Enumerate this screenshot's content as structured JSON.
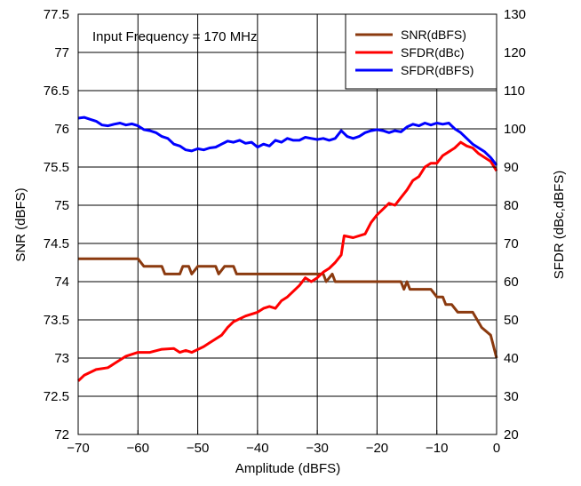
{
  "chart_data": {
    "type": "line",
    "annotation": "Input Frequency = 170 MHz",
    "xlabel": "Amplitude (dBFS)",
    "ylabel_left": "SNR (dBFS)",
    "ylabel_right": "SFDR (dBc,dBFS)",
    "xlim": [
      -70,
      0
    ],
    "ylim_left": [
      72,
      77.5
    ],
    "ylim_right": [
      20,
      130
    ],
    "grid": true,
    "legend_position": "top-right",
    "x_ticks": [
      {
        "v": -70,
        "label": "−70"
      },
      {
        "v": -60,
        "label": "−60"
      },
      {
        "v": -50,
        "label": "−50"
      },
      {
        "v": -40,
        "label": "−40"
      },
      {
        "v": -30,
        "label": "−30"
      },
      {
        "v": -20,
        "label": "−20"
      },
      {
        "v": -10,
        "label": "−10"
      },
      {
        "v": 0,
        "label": "0"
      }
    ],
    "y_left_ticks": [
      "72",
      "72.5",
      "73",
      "73.5",
      "74",
      "74.5",
      "75",
      "75.5",
      "76",
      "76.5",
      "77",
      "77.5"
    ],
    "y_right_ticks": [
      "20",
      "30",
      "40",
      "50",
      "60",
      "70",
      "80",
      "90",
      "100",
      "110",
      "120",
      "130"
    ],
    "series": [
      {
        "name": "SNR(dBFS)",
        "axis": "left",
        "color": "#8B3A0F",
        "points": [
          [
            -70,
            74.3
          ],
          [
            -60,
            74.3
          ],
          [
            -59,
            74.2
          ],
          [
            -56,
            74.2
          ],
          [
            -55.5,
            74.1
          ],
          [
            -53,
            74.1
          ],
          [
            -52.5,
            74.2
          ],
          [
            -51.5,
            74.2
          ],
          [
            -51,
            74.1
          ],
          [
            -50,
            74.2
          ],
          [
            -47,
            74.2
          ],
          [
            -46.5,
            74.1
          ],
          [
            -45.5,
            74.2
          ],
          [
            -44,
            74.2
          ],
          [
            -43.5,
            74.1
          ],
          [
            -29,
            74.1
          ],
          [
            -28.5,
            74.0
          ],
          [
            -27.5,
            74.1
          ],
          [
            -27,
            74.0
          ],
          [
            -16,
            74.0
          ],
          [
            -15.5,
            73.9
          ],
          [
            -15,
            74.0
          ],
          [
            -14.5,
            73.9
          ],
          [
            -11,
            73.9
          ],
          [
            -10,
            73.8
          ],
          [
            -9,
            73.8
          ],
          [
            -8.5,
            73.7
          ],
          [
            -7.5,
            73.7
          ],
          [
            -6.5,
            73.6
          ],
          [
            -4,
            73.6
          ],
          [
            -2.5,
            73.4
          ],
          [
            -1,
            73.3
          ],
          [
            0,
            73.0
          ]
        ]
      },
      {
        "name": "SFDR(dBc)",
        "axis": "right",
        "color": "#FF0000",
        "points": [
          [
            -70,
            34
          ],
          [
            -69,
            35.5
          ],
          [
            -67,
            37
          ],
          [
            -65,
            37.5
          ],
          [
            -64,
            38.5
          ],
          [
            -62,
            40.5
          ],
          [
            -60,
            41.5
          ],
          [
            -58,
            41.5
          ],
          [
            -56,
            42.3
          ],
          [
            -54,
            42.5
          ],
          [
            -53,
            41.5
          ],
          [
            -52,
            42
          ],
          [
            -51,
            41.5
          ],
          [
            -49,
            43
          ],
          [
            -48,
            44
          ],
          [
            -46,
            46
          ],
          [
            -45,
            48
          ],
          [
            -44,
            49.5
          ],
          [
            -42,
            51
          ],
          [
            -40,
            52
          ],
          [
            -39,
            53
          ],
          [
            -38,
            53.5
          ],
          [
            -37,
            53
          ],
          [
            -36,
            55
          ],
          [
            -35,
            56
          ],
          [
            -34,
            57.5
          ],
          [
            -33,
            59
          ],
          [
            -32,
            61
          ],
          [
            -31,
            60
          ],
          [
            -30,
            61
          ],
          [
            -29,
            62.5
          ],
          [
            -28,
            63.5
          ],
          [
            -27,
            65
          ],
          [
            -26,
            67
          ],
          [
            -25.5,
            72
          ],
          [
            -24,
            71.5
          ],
          [
            -22,
            72.5
          ],
          [
            -21,
            75.5
          ],
          [
            -20,
            77.5
          ],
          [
            -19,
            79
          ],
          [
            -18,
            80.5
          ],
          [
            -17,
            80
          ],
          [
            -16,
            82
          ],
          [
            -15,
            84
          ],
          [
            -14,
            86.5
          ],
          [
            -13,
            87.5
          ],
          [
            -12,
            90
          ],
          [
            -11,
            91
          ],
          [
            -10,
            91
          ],
          [
            -9,
            93
          ],
          [
            -8,
            94
          ],
          [
            -7,
            95
          ],
          [
            -6,
            96.5
          ],
          [
            -5,
            95.5
          ],
          [
            -4,
            95
          ],
          [
            -3,
            93.5
          ],
          [
            -2,
            92.5
          ],
          [
            -1,
            91.5
          ],
          [
            0,
            89
          ]
        ]
      },
      {
        "name": "SFDR(dBFS)",
        "axis": "right",
        "color": "#0000FF",
        "points": [
          [
            -70,
            102.8
          ],
          [
            -69,
            103
          ],
          [
            -68,
            102.5
          ],
          [
            -67,
            102
          ],
          [
            -66,
            101
          ],
          [
            -65,
            100.8
          ],
          [
            -64,
            101.2
          ],
          [
            -63,
            101.5
          ],
          [
            -62,
            101
          ],
          [
            -61,
            101.3
          ],
          [
            -60,
            100.8
          ],
          [
            -59,
            99.8
          ],
          [
            -58,
            99.5
          ],
          [
            -57,
            99
          ],
          [
            -56,
            98
          ],
          [
            -55,
            97.5
          ],
          [
            -54,
            96
          ],
          [
            -53,
            95.5
          ],
          [
            -52,
            94.5
          ],
          [
            -51,
            94.2
          ],
          [
            -50,
            94.8
          ],
          [
            -49,
            94.5
          ],
          [
            -48,
            95
          ],
          [
            -47,
            95.2
          ],
          [
            -46,
            96
          ],
          [
            -45,
            96.8
          ],
          [
            -44,
            96.5
          ],
          [
            -43,
            97
          ],
          [
            -42,
            96.2
          ],
          [
            -41,
            96.5
          ],
          [
            -40,
            95.2
          ],
          [
            -39,
            96
          ],
          [
            -38,
            95.5
          ],
          [
            -37,
            97
          ],
          [
            -36,
            96.5
          ],
          [
            -35,
            97.5
          ],
          [
            -34,
            97
          ],
          [
            -33,
            97
          ],
          [
            -32,
            97.8
          ],
          [
            -31,
            97.5
          ],
          [
            -30,
            97.2
          ],
          [
            -29,
            97.5
          ],
          [
            -28,
            97
          ],
          [
            -27,
            97.5
          ],
          [
            -26,
            99.5
          ],
          [
            -25,
            98
          ],
          [
            -24,
            97.5
          ],
          [
            -23,
            98
          ],
          [
            -22,
            99
          ],
          [
            -21,
            99.5
          ],
          [
            -20,
            99.8
          ],
          [
            -19,
            99.5
          ],
          [
            -18,
            99
          ],
          [
            -17,
            99.5
          ],
          [
            -16,
            99.2
          ],
          [
            -15,
            100.5
          ],
          [
            -14,
            101.2
          ],
          [
            -13,
            100.8
          ],
          [
            -12,
            101.5
          ],
          [
            -11,
            101
          ],
          [
            -10,
            101.5
          ],
          [
            -9,
            101.2
          ],
          [
            -8,
            101.5
          ],
          [
            -7,
            100
          ],
          [
            -6,
            99
          ],
          [
            -5,
            97.5
          ],
          [
            -4,
            96
          ],
          [
            -3,
            95
          ],
          [
            -2,
            94
          ],
          [
            -1,
            92.5
          ],
          [
            0,
            90.5
          ]
        ]
      }
    ]
  }
}
